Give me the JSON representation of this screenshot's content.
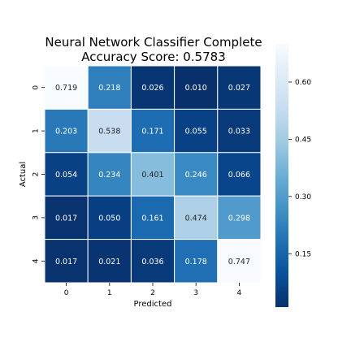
{
  "chart_data": {
    "type": "heatmap",
    "title": "Neural Network Classifier Complete",
    "subtitle": "Accuracy Score: 0.5783",
    "xlabel": "Predicted",
    "ylabel": "Actual",
    "x_categories": [
      "0",
      "1",
      "2",
      "3",
      "4"
    ],
    "y_categories": [
      "0",
      "1",
      "2",
      "3",
      "4"
    ],
    "values": [
      [
        0.719,
        0.218,
        0.026,
        0.01,
        0.027
      ],
      [
        0.203,
        0.538,
        0.171,
        0.055,
        0.033
      ],
      [
        0.054,
        0.234,
        0.401,
        0.246,
        0.066
      ],
      [
        0.017,
        0.05,
        0.161,
        0.474,
        0.298
      ],
      [
        0.017,
        0.021,
        0.036,
        0.178,
        0.747
      ]
    ],
    "value_labels": [
      [
        "0.719",
        "0.218",
        "0.026",
        "0.010",
        "0.027"
      ],
      [
        "0.203",
        "0.538",
        "0.171",
        "0.055",
        "0.033"
      ],
      [
        "0.054",
        "0.234",
        "0.401",
        "0.246",
        "0.066"
      ],
      [
        "0.017",
        "0.050",
        "0.161",
        "0.474",
        "0.298"
      ],
      [
        "0.017",
        "0.021",
        "0.036",
        "0.178",
        "0.747"
      ]
    ],
    "colormap": "Blues_r",
    "colorbar": {
      "range": [
        0.01,
        0.7
      ],
      "ticks": [
        0.15,
        0.3,
        0.45,
        0.6
      ],
      "tick_labels": [
        "0.15",
        "0.30",
        "0.45",
        "0.60"
      ]
    },
    "grid": true,
    "cell_border_color": "#ffffff"
  }
}
